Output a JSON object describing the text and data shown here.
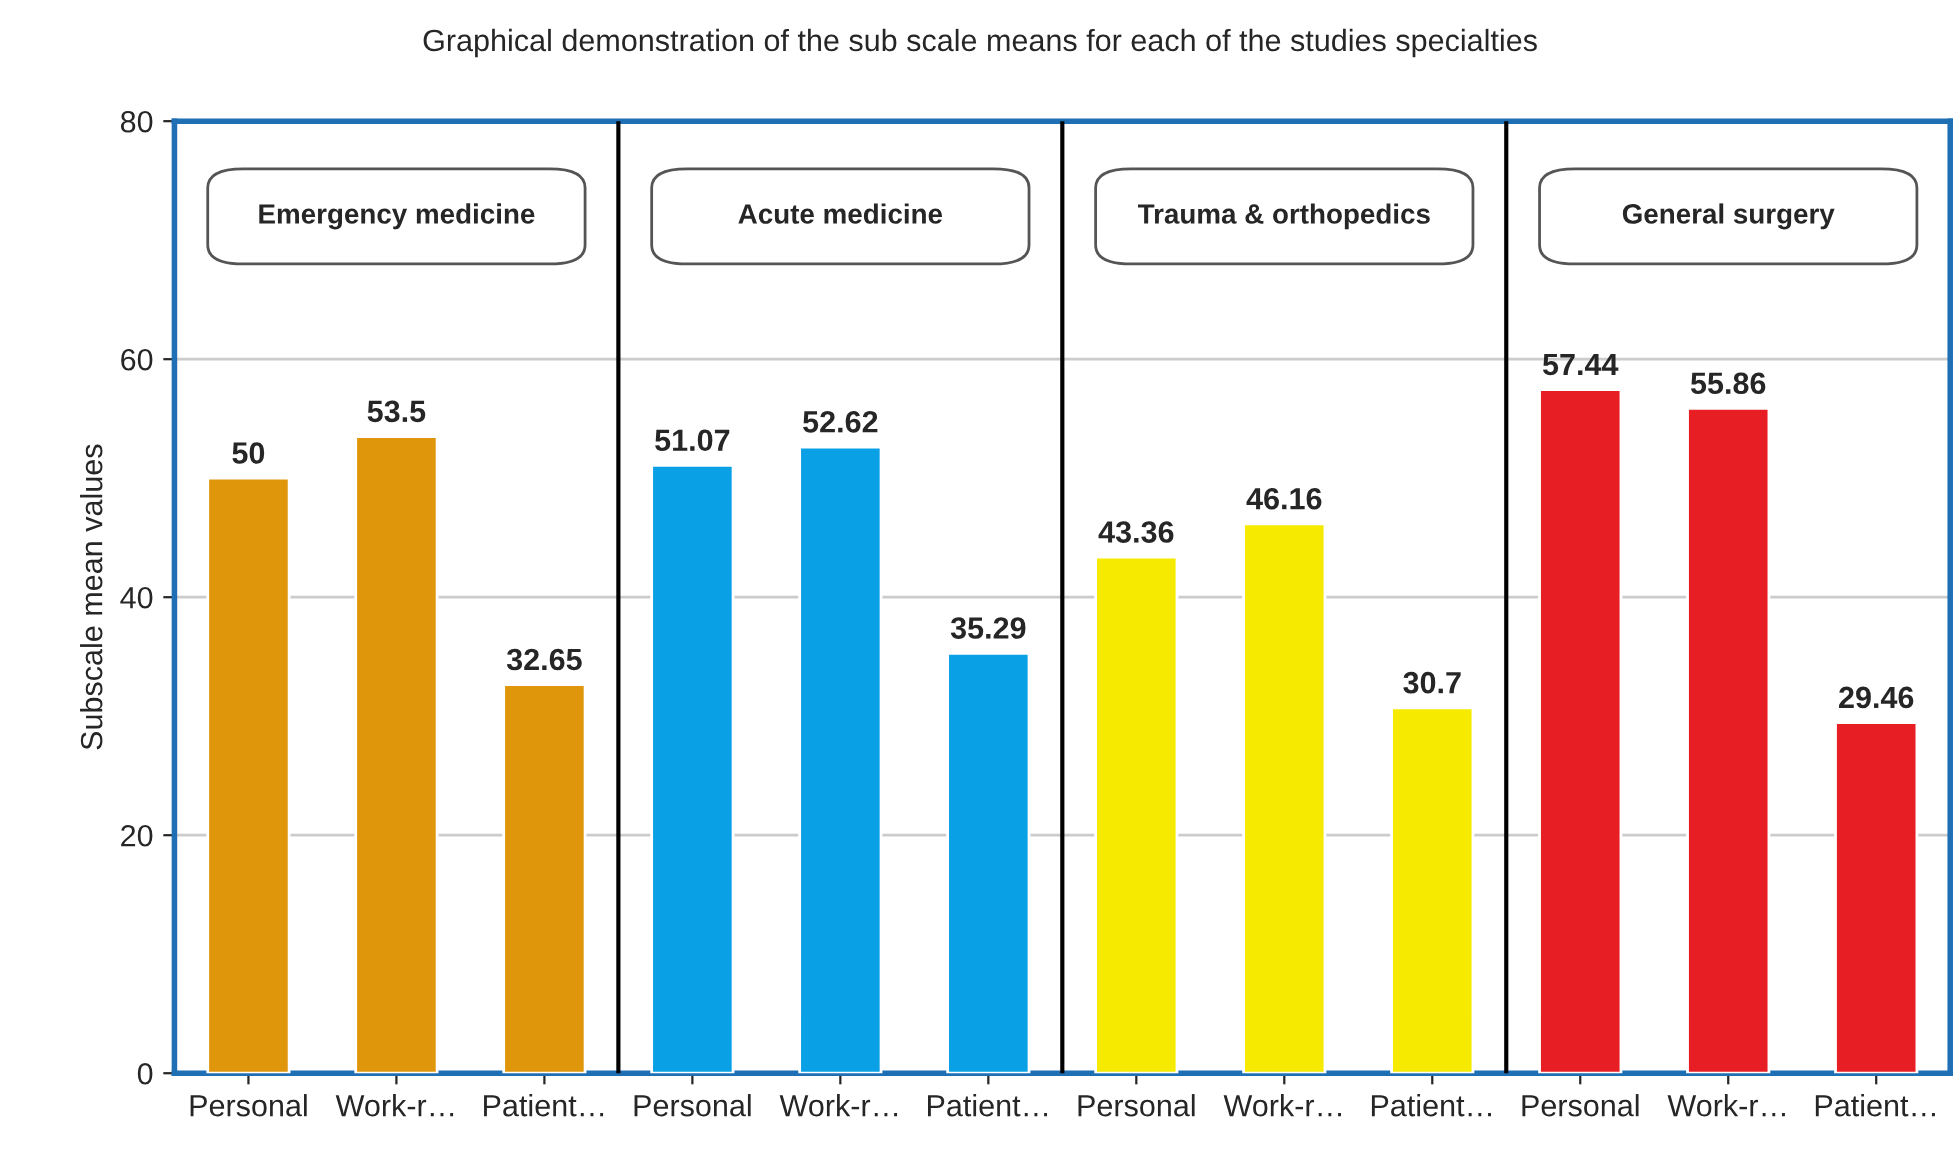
{
  "chart_data": {
    "type": "bar",
    "title": "Graphical demonstration of the sub scale means for each of the studies specialties",
    "ylabel": "Subscale mean values",
    "categories": [
      "Personal",
      "Work-r…",
      "Patient…",
      "Personal",
      "Work-r…",
      "Patient…",
      "Personal",
      "Work-r…",
      "Patient…",
      "Personal",
      "Work-r…",
      "Patient…"
    ],
    "values": [
      50,
      53.5,
      32.65,
      51.07,
      52.62,
      35.29,
      43.36,
      46.16,
      30.7,
      57.44,
      55.86,
      29.46
    ],
    "colors": [
      "#e0960a",
      "#e0960a",
      "#e0960a",
      "#0aa0e6",
      "#0aa0e6",
      "#0aa0e6",
      "#f5ea00",
      "#f5ea00",
      "#f5ea00",
      "#e81e25",
      "#e81e25",
      "#e81e25"
    ],
    "annotations": [
      "Emergency medicine",
      "Acute medicine",
      "Trauma & orthopedics",
      "General surgery"
    ],
    "ylim": [
      0,
      80
    ],
    "yticks": [
      0,
      20,
      40,
      60,
      80
    ],
    "grid": "y",
    "data_labels": true
  }
}
